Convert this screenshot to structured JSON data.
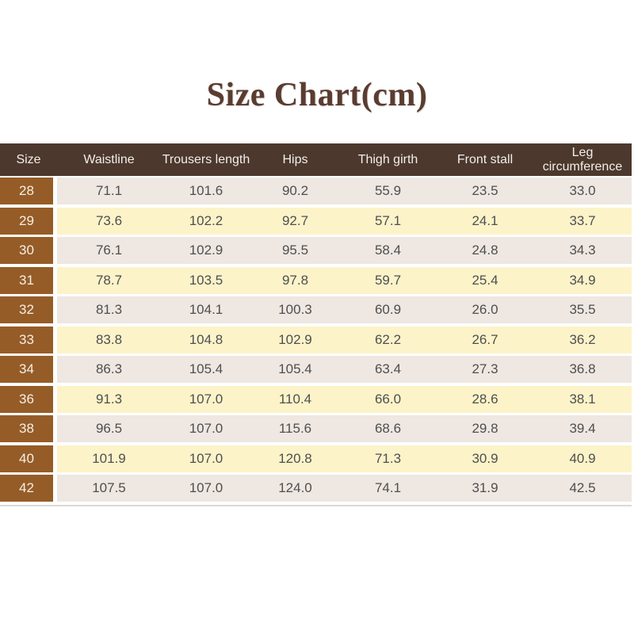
{
  "chart_data": {
    "type": "table",
    "title": "Size Chart(cm)",
    "columns": [
      "Size",
      "Waistline",
      "Trousers length",
      "Hips",
      "Thigh girth",
      "Front stall",
      "Leg circumference"
    ],
    "rows": [
      {
        "size": "28",
        "values": [
          "71.1",
          "101.6",
          "90.2",
          "55.9",
          "23.5",
          "33.0"
        ]
      },
      {
        "size": "29",
        "values": [
          "73.6",
          "102.2",
          "92.7",
          "57.1",
          "24.1",
          "33.7"
        ]
      },
      {
        "size": "30",
        "values": [
          "76.1",
          "102.9",
          "95.5",
          "58.4",
          "24.8",
          "34.3"
        ]
      },
      {
        "size": "31",
        "values": [
          "78.7",
          "103.5",
          "97.8",
          "59.7",
          "25.4",
          "34.9"
        ]
      },
      {
        "size": "32",
        "values": [
          "81.3",
          "104.1",
          "100.3",
          "60.9",
          "26.0",
          "35.5"
        ]
      },
      {
        "size": "33",
        "values": [
          "83.8",
          "104.8",
          "102.9",
          "62.2",
          "26.7",
          "36.2"
        ]
      },
      {
        "size": "34",
        "values": [
          "86.3",
          "105.4",
          "105.4",
          "63.4",
          "27.3",
          "36.8"
        ]
      },
      {
        "size": "36",
        "values": [
          "91.3",
          "107.0",
          "110.4",
          "66.0",
          "28.6",
          "38.1"
        ]
      },
      {
        "size": "38",
        "values": [
          "96.5",
          "107.0",
          "115.6",
          "68.6",
          "29.8",
          "39.4"
        ]
      },
      {
        "size": "40",
        "values": [
          "101.9",
          "107.0",
          "120.8",
          "71.3",
          "30.9",
          "40.9"
        ]
      },
      {
        "size": "42",
        "values": [
          "107.5",
          "107.0",
          "124.0",
          "74.1",
          "31.9",
          "42.5"
        ]
      }
    ]
  },
  "colors": {
    "title_text": "#5a3c30",
    "header_bg": "#4c382d",
    "header_text": "#f3eee9",
    "size_col_bg": "#965c27",
    "size_col_text": "#f5efe6",
    "row_light_bg": "#eee7e2",
    "row_yellow_bg": "#fcf3c9",
    "value_text": "#4f4f4f",
    "bottom_divider": "#ddd8d4"
  }
}
